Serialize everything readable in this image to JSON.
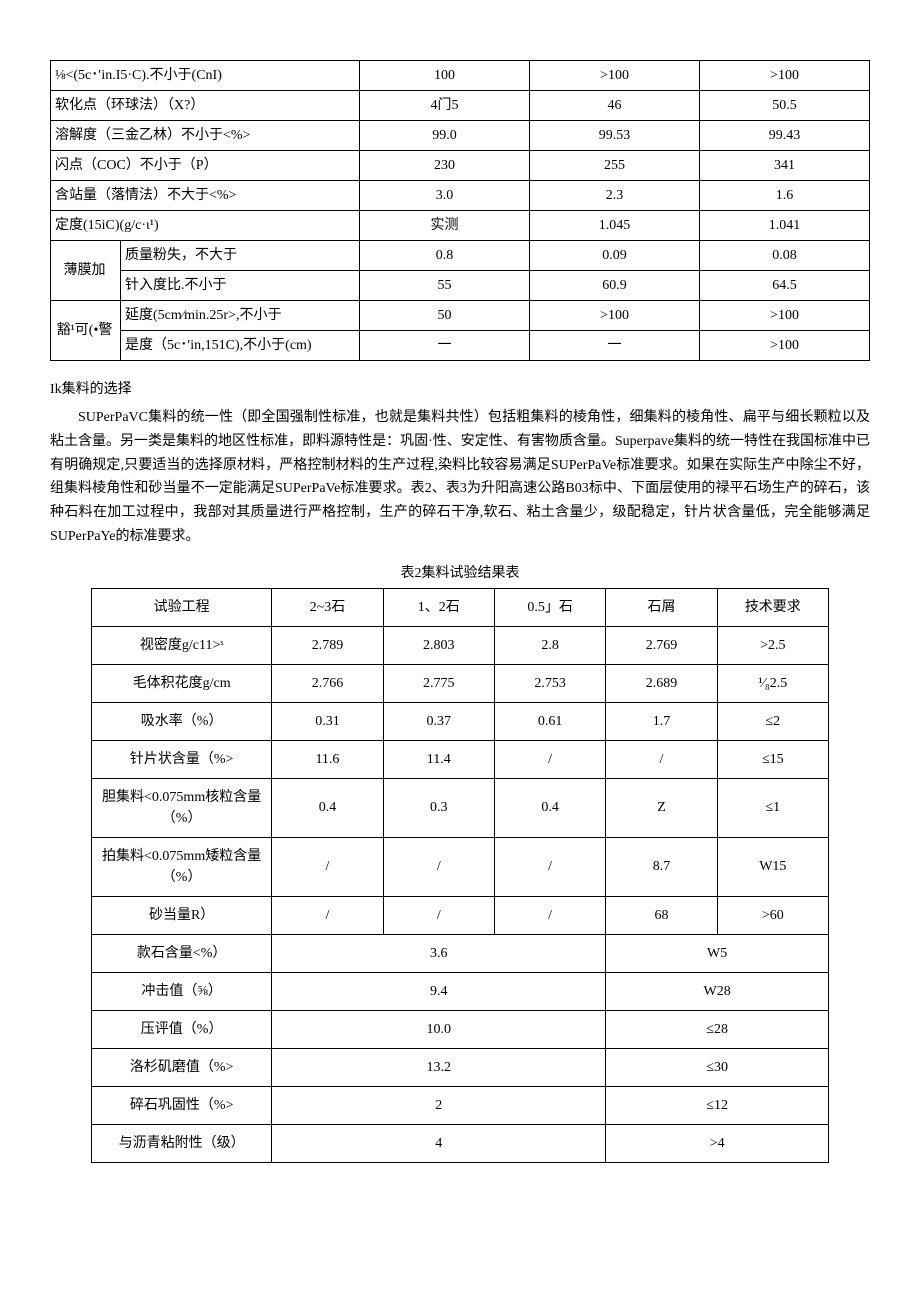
{
  "table1": {
    "rows_simple": [
      {
        "label": "⅛<(5c･′in.I5·C).不小于(CnI)",
        "v1": "100",
        "v2": ">100",
        "v3": ">100"
      },
      {
        "label": "软化点（环球法）（X?）",
        "v1": "4门5",
        "v2": "46",
        "v3": "50.5"
      },
      {
        "label": "溶解度（三金乙林）不小于<%>",
        "v1": "99.0",
        "v2": "99.53",
        "v3": "99.43"
      },
      {
        "label": "闪点（COC）不小于（P）",
        "v1": "230",
        "v2": "255",
        "v3": "341"
      },
      {
        "label": "含站量（落情法）不大于<%>",
        "v1": "3.0",
        "v2": "2.3",
        "v3": "1.6"
      },
      {
        "label": "定度(15iC)(g/c·ι¹)",
        "v1": "实测",
        "v2": "1.045",
        "v3": "1.041"
      }
    ],
    "group_label_1": "薄膜加",
    "group_label_2": "豁¹可(•警",
    "group_rows": [
      {
        "label": "质量粉失，不大于",
        "v1": "0.8",
        "v2": "0.09",
        "v3": "0.08"
      },
      {
        "label": "针入度比.不小于",
        "v1": "55",
        "v2": "60.9",
        "v3": "64.5"
      },
      {
        "label": "延度(5cm∕min.25r>,不小于<cm>",
        "v1": "50",
        "v2": ">100",
        "v3": ">100"
      },
      {
        "label": "是度（5c･′in,151C),不小于(cm)",
        "v1": "一",
        "v2": "一",
        "v3": ">100"
      }
    ]
  },
  "section_title": "Ik集料的选择",
  "paragraph": "SUPerPaVC集料的统一性（即全国强制性标准，也就是集料共性）包括粗集料的棱角性，细集料的棱角性、扁平与细长颗粒以及粘土含量。另一类是集料的地区性标准，即料源特性是：巩固·性、安定性、有害物质含量。Superpave集料的统一特性在我国标准中已有明确规定,只要适当的选择原材料，严格控制材料的生产过程,染料比较容易满足SUPerPaVe标准要求。如果在实际生产中除尘不好，组集料棱角性和砂当量不一定能满足SUPerPaVe标准要求。表2、表3为升阳高速公路B03标中、下面层使用的禄平石场生产的碎石，该种石料在加工过程中，我部对其质量进行严格控制，生产的碎石干净,软石、粘土含量少，级配稳定，针片状含量低，完全能够满足SUPerPaYe的标准要求。",
  "table2": {
    "caption": "表2集料试验结果表",
    "headers": [
      "试验工程",
      "2~3石",
      "1、2石",
      "0.5」石",
      "石屑",
      "技术要求"
    ],
    "rows_full": [
      {
        "name": "视密度g/c11>ˢ",
        "c1": "2.789",
        "c2": "2.803",
        "c3": "2.8",
        "c4": "2.769",
        "req": ">2.5"
      },
      {
        "name": "毛体积花度g/cm",
        "c1": "2.766",
        "c2": "2.775",
        "c3": "2.753",
        "c4": "2.689",
        "req": "¹∕₈2.5"
      },
      {
        "name": "吸水率（%）",
        "c1": "0.31",
        "c2": "0.37",
        "c3": "0.61",
        "c4": "1.7",
        "req": "≤2"
      },
      {
        "name": "针片状含量（%>",
        "c1": "11.6",
        "c2": "11.4",
        "c3": "/",
        "c4": "/",
        "req": "≤15"
      },
      {
        "name": "胆集料<0.075mm核粒含量（%）",
        "c1": "0.4",
        "c2": "0.3",
        "c3": "0.4",
        "c4": "Z",
        "req": "≤1"
      },
      {
        "name": "拍集料<0.075mm矮粒含量（%）",
        "c1": "/",
        "c2": "/",
        "c3": "/",
        "c4": "8.7",
        "req": "W15"
      },
      {
        "name": "砂当量R）",
        "c1": "/",
        "c2": "/",
        "c3": "/",
        "c4": "68",
        "req": ">60"
      }
    ],
    "rows_merged": [
      {
        "name": "款石含量<%）",
        "val": "3.6",
        "req": "W5"
      },
      {
        "name": "冲击值（⅝）",
        "val": "9.4",
        "req": "W28"
      },
      {
        "name": "压评值（%）",
        "val": "10.0",
        "req": "≤28"
      },
      {
        "name": "洛杉矶磨值（%>",
        "val": "13.2",
        "req": "≤30"
      },
      {
        "name": "碎石巩固性（%>",
        "val": "2",
        "req": "≤12"
      },
      {
        "name": "与沥青粘附性（级）",
        "val": "4",
        "req": ">4"
      }
    ]
  }
}
